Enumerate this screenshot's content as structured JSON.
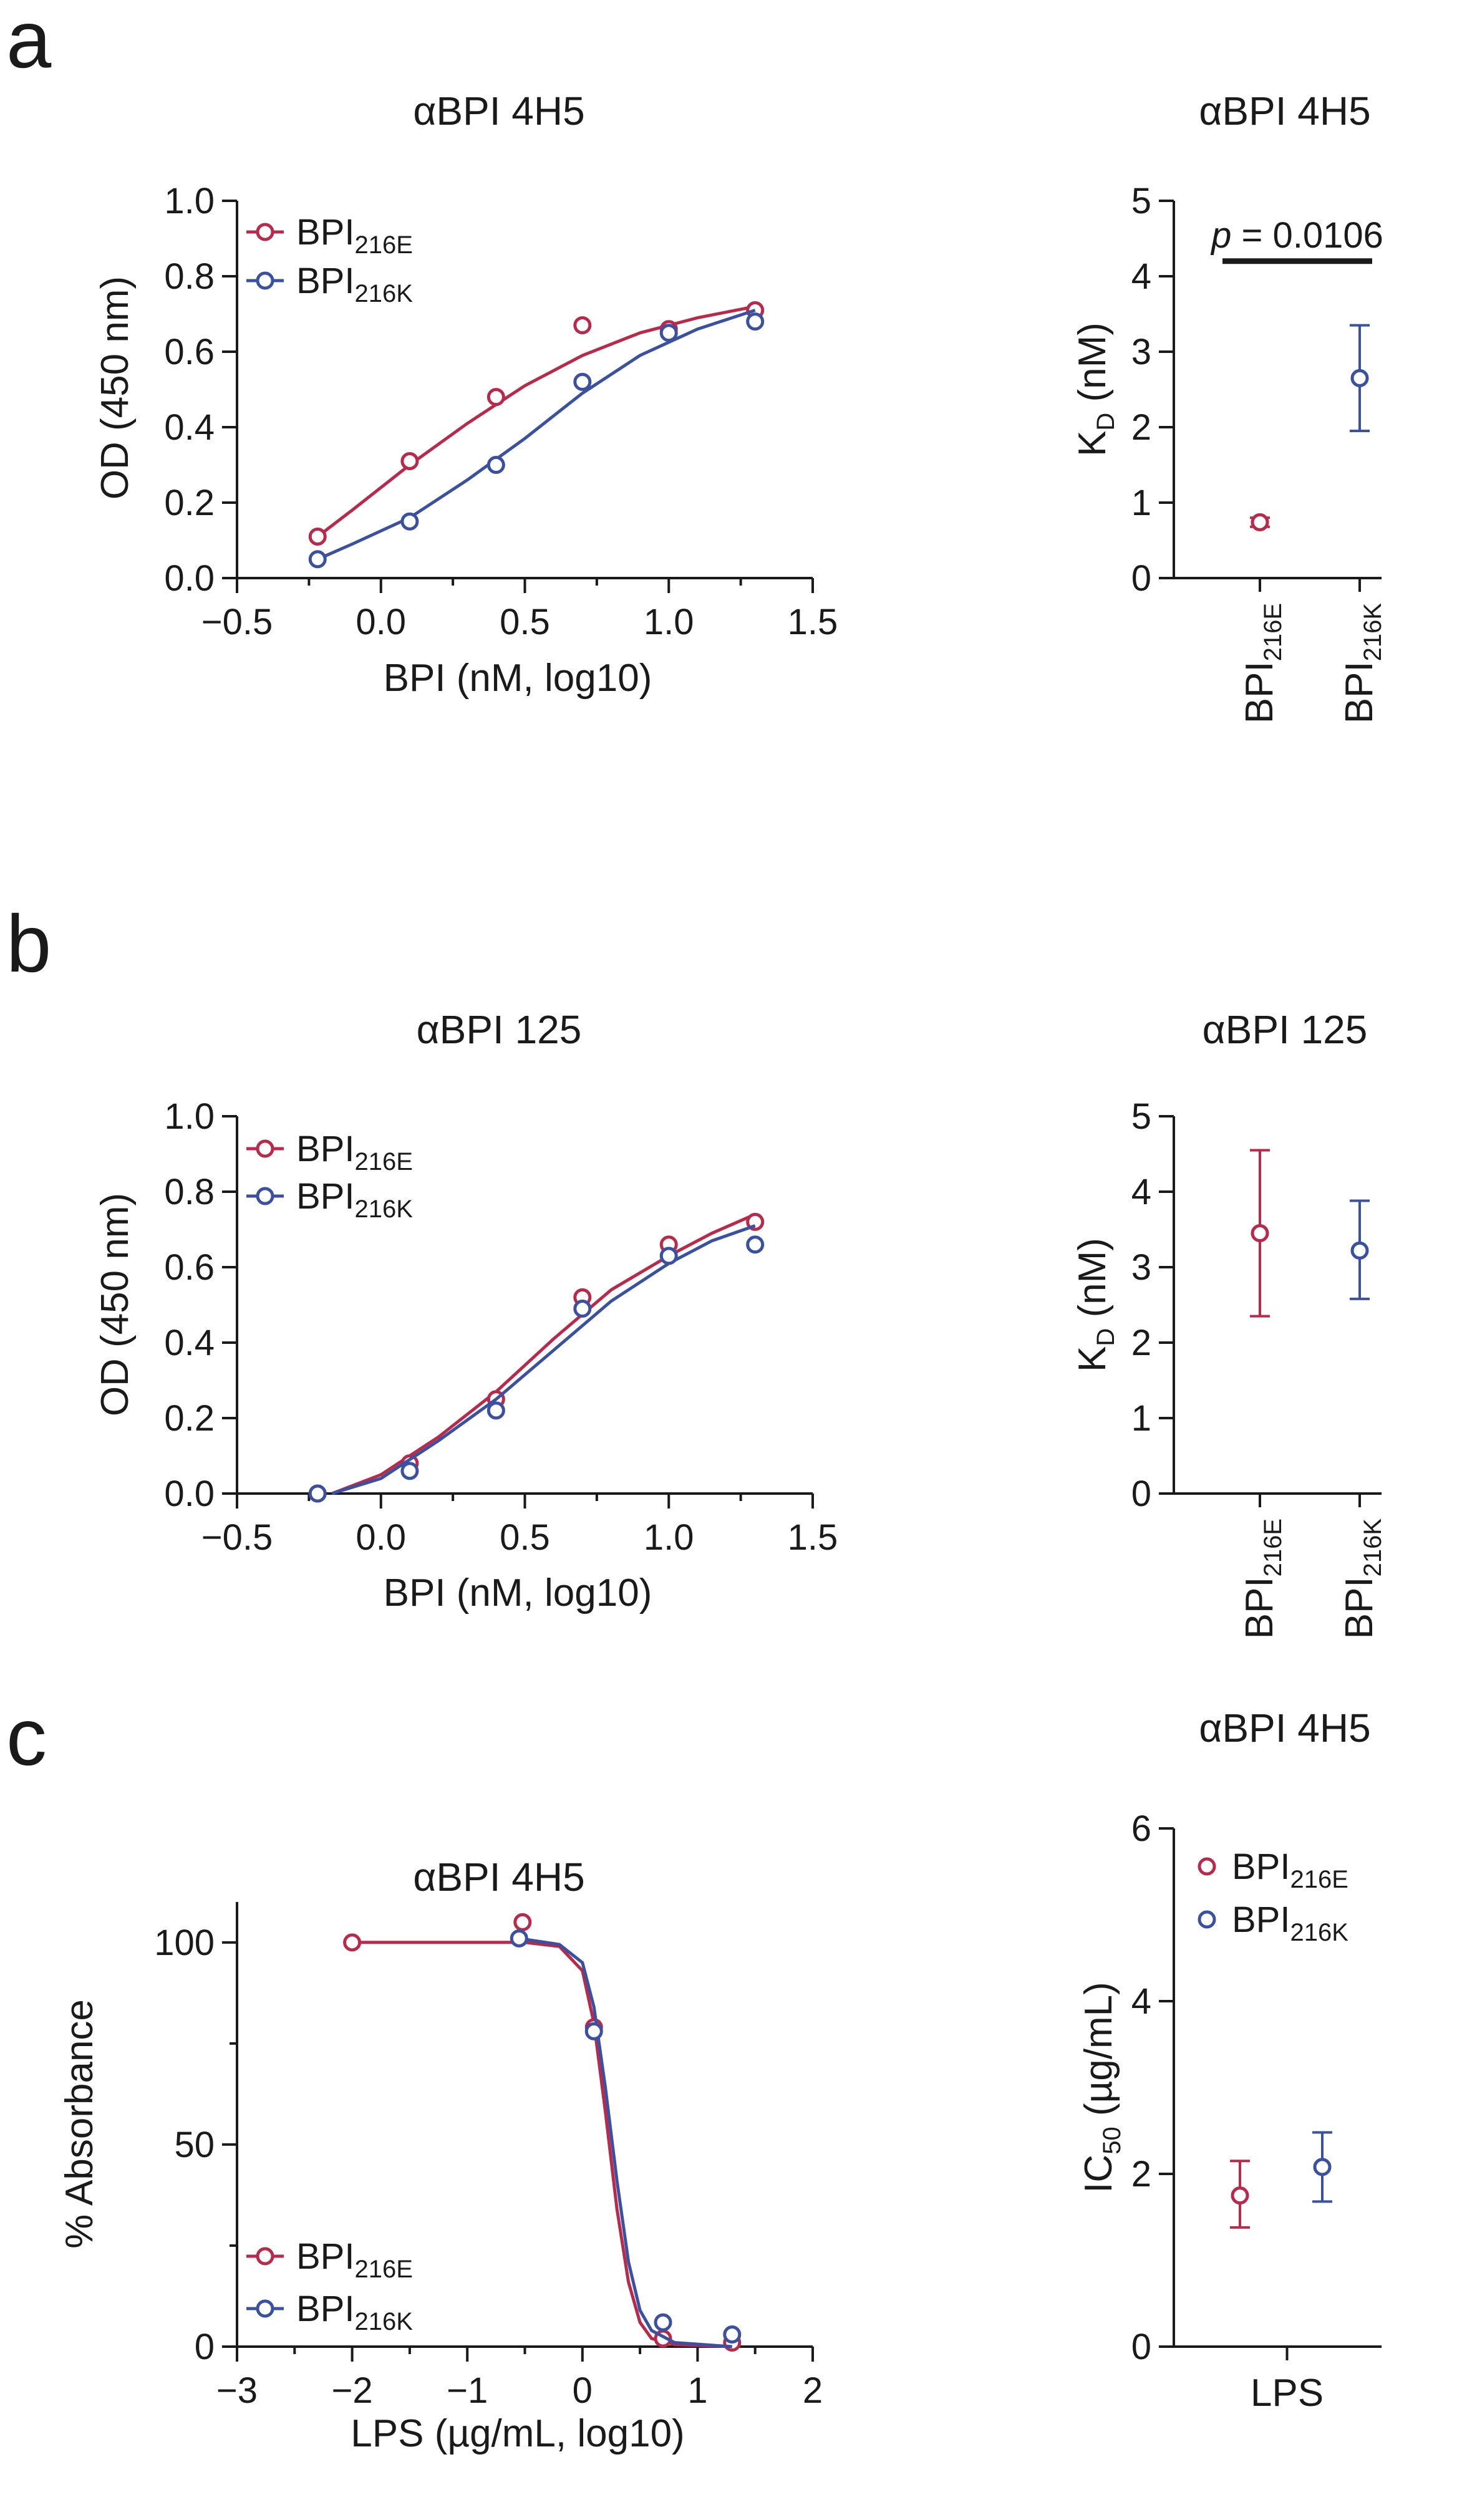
{
  "figure": {
    "panel_labels": [
      "a",
      "b",
      "c"
    ],
    "colors": {
      "bpi_216e": "#b8294a",
      "bpi_216k": "#3a50a0",
      "axis": "#1a1a1a"
    }
  },
  "chart_data": [
    {
      "id": "a_left",
      "type": "line",
      "title": "αBPI 4H5",
      "xlabel": "BPI (nM, log10)",
      "ylabel": "OD (450 nm)",
      "xlim": [
        -0.5,
        1.5
      ],
      "ylim": [
        0,
        1.0
      ],
      "xticks": [
        -0.5,
        0.0,
        0.5,
        1.0,
        1.5
      ],
      "xtick_labels": [
        "−0.5",
        "0.0",
        "0.5",
        "1.0",
        "1.5"
      ],
      "yticks": [
        0,
        0.2,
        0.4,
        0.6,
        0.8,
        1.0
      ],
      "ytick_labels": [
        "0.0",
        "0.2",
        "0.4",
        "0.6",
        "0.8",
        "1.0"
      ],
      "legend_position": "top-left",
      "series": [
        {
          "name_main": "BPI",
          "name_sub": "216E",
          "color": "#b8294a",
          "x": [
            -0.22,
            0.1,
            0.4,
            0.7,
            1.0,
            1.3
          ],
          "y": [
            0.11,
            0.31,
            0.48,
            0.67,
            0.66,
            0.71
          ],
          "curve": [
            [
              -0.22,
              0.11
            ],
            [
              -0.1,
              0.18
            ],
            [
              0.1,
              0.3
            ],
            [
              0.3,
              0.41
            ],
            [
              0.5,
              0.51
            ],
            [
              0.7,
              0.59
            ],
            [
              0.9,
              0.65
            ],
            [
              1.1,
              0.69
            ],
            [
              1.3,
              0.72
            ]
          ]
        },
        {
          "name_main": "BPI",
          "name_sub": "216K",
          "color": "#3a50a0",
          "x": [
            -0.22,
            0.1,
            0.4,
            0.7,
            1.0,
            1.3
          ],
          "y": [
            0.05,
            0.15,
            0.3,
            0.52,
            0.65,
            0.68
          ],
          "curve": [
            [
              -0.22,
              0.05
            ],
            [
              -0.1,
              0.09
            ],
            [
              0.1,
              0.16
            ],
            [
              0.3,
              0.26
            ],
            [
              0.5,
              0.37
            ],
            [
              0.7,
              0.49
            ],
            [
              0.9,
              0.59
            ],
            [
              1.1,
              0.66
            ],
            [
              1.3,
              0.71
            ]
          ]
        }
      ]
    },
    {
      "id": "a_right",
      "type": "scatter",
      "title": "αBPI 4H5",
      "ylabel_main": "K",
      "ylabel_sub": "D",
      "ylabel_rest": " (nM)",
      "ylim": [
        0,
        5
      ],
      "yticks": [
        0,
        1,
        2,
        3,
        4,
        5
      ],
      "ytick_labels": [
        "0",
        "1",
        "2",
        "3",
        "4",
        "5"
      ],
      "categories": [
        {
          "main": "BPI",
          "sub": "216E"
        },
        {
          "main": "BPI",
          "sub": "216K"
        }
      ],
      "points": [
        {
          "value": 0.74,
          "err_low": 0.68,
          "err_high": 0.8,
          "color": "#b8294a"
        },
        {
          "value": 2.65,
          "err_low": 1.95,
          "err_high": 3.35,
          "color": "#3a50a0"
        }
      ],
      "annotation": {
        "p_label": "p",
        "p_text": " = 0.0106",
        "bar_level": 4.2
      }
    },
    {
      "id": "b_left",
      "type": "line",
      "title": "αBPI 125",
      "xlabel": "BPI (nM, log10)",
      "ylabel": "OD (450 nm)",
      "xlim": [
        -0.5,
        1.5
      ],
      "ylim": [
        0,
        1.0
      ],
      "xticks": [
        -0.5,
        0.0,
        0.5,
        1.0,
        1.5
      ],
      "xtick_labels": [
        "−0.5",
        "0.0",
        "0.5",
        "1.0",
        "1.5"
      ],
      "yticks": [
        0,
        0.2,
        0.4,
        0.6,
        0.8,
        1.0
      ],
      "ytick_labels": [
        "0.0",
        "0.2",
        "0.4",
        "0.6",
        "0.8",
        "1.0"
      ],
      "legend_position": "top-left",
      "series": [
        {
          "name_main": "BPI",
          "name_sub": "216E",
          "color": "#b8294a",
          "x": [
            -0.22,
            0.1,
            0.4,
            0.7,
            1.0,
            1.3
          ],
          "y": [
            0.0,
            0.08,
            0.25,
            0.52,
            0.66,
            0.72
          ],
          "curve": [
            [
              -0.17,
              0.0
            ],
            [
              0.0,
              0.05
            ],
            [
              0.2,
              0.15
            ],
            [
              0.4,
              0.27
            ],
            [
              0.6,
              0.41
            ],
            [
              0.8,
              0.54
            ],
            [
              1.0,
              0.63
            ],
            [
              1.15,
              0.69
            ],
            [
              1.3,
              0.74
            ]
          ]
        },
        {
          "name_main": "BPI",
          "name_sub": "216K",
          "color": "#3a50a0",
          "x": [
            -0.22,
            0.1,
            0.4,
            0.7,
            1.0,
            1.3
          ],
          "y": [
            0.0,
            0.06,
            0.22,
            0.49,
            0.63,
            0.66
          ],
          "curve": [
            [
              -0.17,
              0.0
            ],
            [
              0.0,
              0.04
            ],
            [
              0.2,
              0.14
            ],
            [
              0.4,
              0.25
            ],
            [
              0.6,
              0.38
            ],
            [
              0.8,
              0.51
            ],
            [
              1.0,
              0.61
            ],
            [
              1.15,
              0.67
            ],
            [
              1.3,
              0.71
            ]
          ]
        }
      ]
    },
    {
      "id": "b_right",
      "type": "scatter",
      "title": "αBPI 125",
      "ylabel_main": "K",
      "ylabel_sub": "D",
      "ylabel_rest": " (nM)",
      "ylim": [
        0,
        5
      ],
      "yticks": [
        0,
        1,
        2,
        3,
        4,
        5
      ],
      "ytick_labels": [
        "0",
        "1",
        "2",
        "3",
        "4",
        "5"
      ],
      "categories": [
        {
          "main": "BPI",
          "sub": "216E"
        },
        {
          "main": "BPI",
          "sub": "216K"
        }
      ],
      "points": [
        {
          "value": 3.45,
          "err_low": 2.35,
          "err_high": 4.55,
          "color": "#b8294a"
        },
        {
          "value": 3.22,
          "err_low": 2.58,
          "err_high": 3.88,
          "color": "#3a50a0"
        }
      ]
    },
    {
      "id": "c_left",
      "type": "line",
      "title": "αBPI 4H5",
      "xlabel": "LPS (µg/mL, log10)",
      "ylabel": "% Absorbance",
      "xlim": [
        -3,
        2
      ],
      "ylim": [
        0,
        110
      ],
      "xticks": [
        -3,
        -2,
        -1,
        0,
        1,
        2
      ],
      "xtick_labels": [
        "−3",
        "−2",
        "−1",
        "0",
        "1",
        "2"
      ],
      "yticks": [
        0,
        50,
        100
      ],
      "ytick_labels": [
        "0",
        "50",
        "100"
      ],
      "legend_position": "bottom-left",
      "series": [
        {
          "name_main": "BPI",
          "name_sub": "216E",
          "color": "#b8294a",
          "x": [
            -2.0,
            -0.52,
            0.1,
            0.7,
            1.3
          ],
          "y": [
            100,
            105,
            79,
            2,
            1
          ],
          "curve": [
            [
              -2.0,
              100
            ],
            [
              -0.5,
              100
            ],
            [
              -0.2,
              99
            ],
            [
              0.0,
              93
            ],
            [
              0.1,
              80
            ],
            [
              0.2,
              58
            ],
            [
              0.3,
              34
            ],
            [
              0.4,
              16
            ],
            [
              0.5,
              6
            ],
            [
              0.6,
              2
            ],
            [
              0.8,
              0.5
            ],
            [
              1.3,
              0
            ]
          ]
        },
        {
          "name_main": "BPI",
          "name_sub": "216K",
          "color": "#3a50a0",
          "x": [
            -0.55,
            0.1,
            0.7,
            1.3
          ],
          "y": [
            101,
            78,
            6,
            3
          ],
          "curve": [
            [
              -0.55,
              101
            ],
            [
              -0.2,
              99.5
            ],
            [
              0.0,
              95
            ],
            [
              0.1,
              84
            ],
            [
              0.2,
              64
            ],
            [
              0.3,
              41
            ],
            [
              0.4,
              21
            ],
            [
              0.5,
              9
            ],
            [
              0.6,
              4
            ],
            [
              0.8,
              1
            ],
            [
              1.3,
              0
            ]
          ]
        }
      ]
    },
    {
      "id": "c_right",
      "type": "scatter",
      "title": "αBPI 4H5",
      "ylabel_main": "IC",
      "ylabel_sub": "50",
      "ylabel_rest": " (µg/mL)",
      "ylim": [
        0,
        6
      ],
      "yticks": [
        0,
        2,
        4,
        6
      ],
      "ytick_labels": [
        "0",
        "2",
        "4",
        "6"
      ],
      "xcategory": "LPS",
      "legend_position": "top-right",
      "points": [
        {
          "name_main": "BPI",
          "name_sub": "216E",
          "value": 1.75,
          "err_low": 1.38,
          "err_high": 2.15,
          "color": "#b8294a"
        },
        {
          "name_main": "BPI",
          "name_sub": "216K",
          "value": 2.08,
          "err_low": 1.68,
          "err_high": 2.48,
          "color": "#3a50a0"
        }
      ]
    }
  ]
}
